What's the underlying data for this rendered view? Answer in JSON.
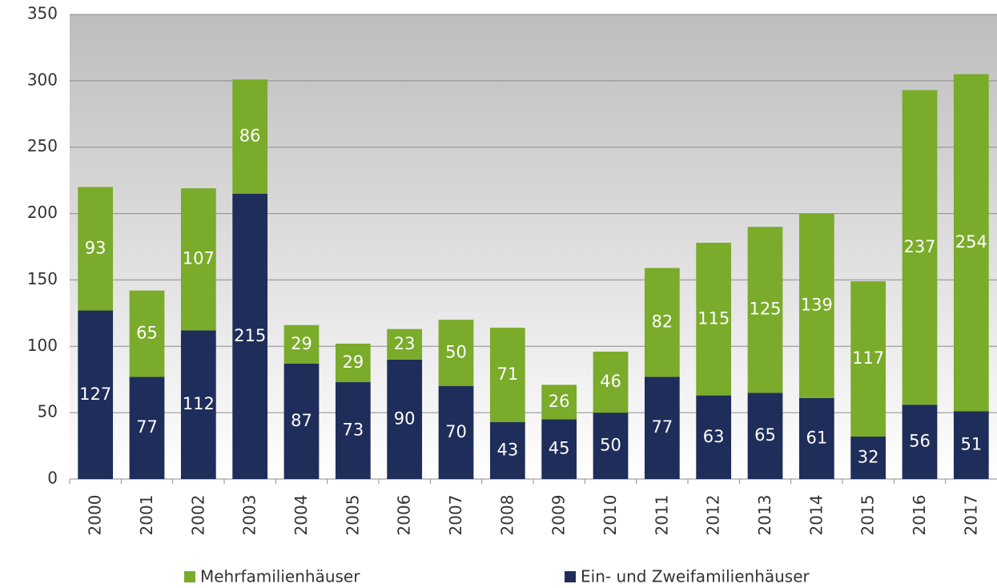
{
  "chart_data": {
    "type": "stacked_bar",
    "categories": [
      "2000",
      "2001",
      "2002",
      "2003",
      "2004",
      "2005",
      "2006",
      "2007",
      "2008",
      "2009",
      "2010",
      "2011",
      "2012",
      "2013",
      "2014",
      "2015",
      "2016",
      "2017"
    ],
    "series": [
      {
        "name": "Ein- und Zweifamilienhäuser",
        "color": "#1f2d5a",
        "values": [
          127,
          77,
          112,
          215,
          87,
          73,
          90,
          70,
          43,
          45,
          50,
          77,
          63,
          65,
          61,
          32,
          56,
          51
        ]
      },
      {
        "name": "Mehrfamilienhäuser",
        "color": "#7aab2a",
        "values": [
          93,
          65,
          107,
          86,
          29,
          29,
          23,
          50,
          71,
          26,
          46,
          82,
          115,
          125,
          139,
          117,
          237,
          254
        ]
      }
    ],
    "ylim": [
      0,
      350
    ],
    "yticks": [
      0,
      50,
      100,
      150,
      200,
      250,
      300,
      350
    ],
    "grid": true,
    "legend": "bottom"
  }
}
